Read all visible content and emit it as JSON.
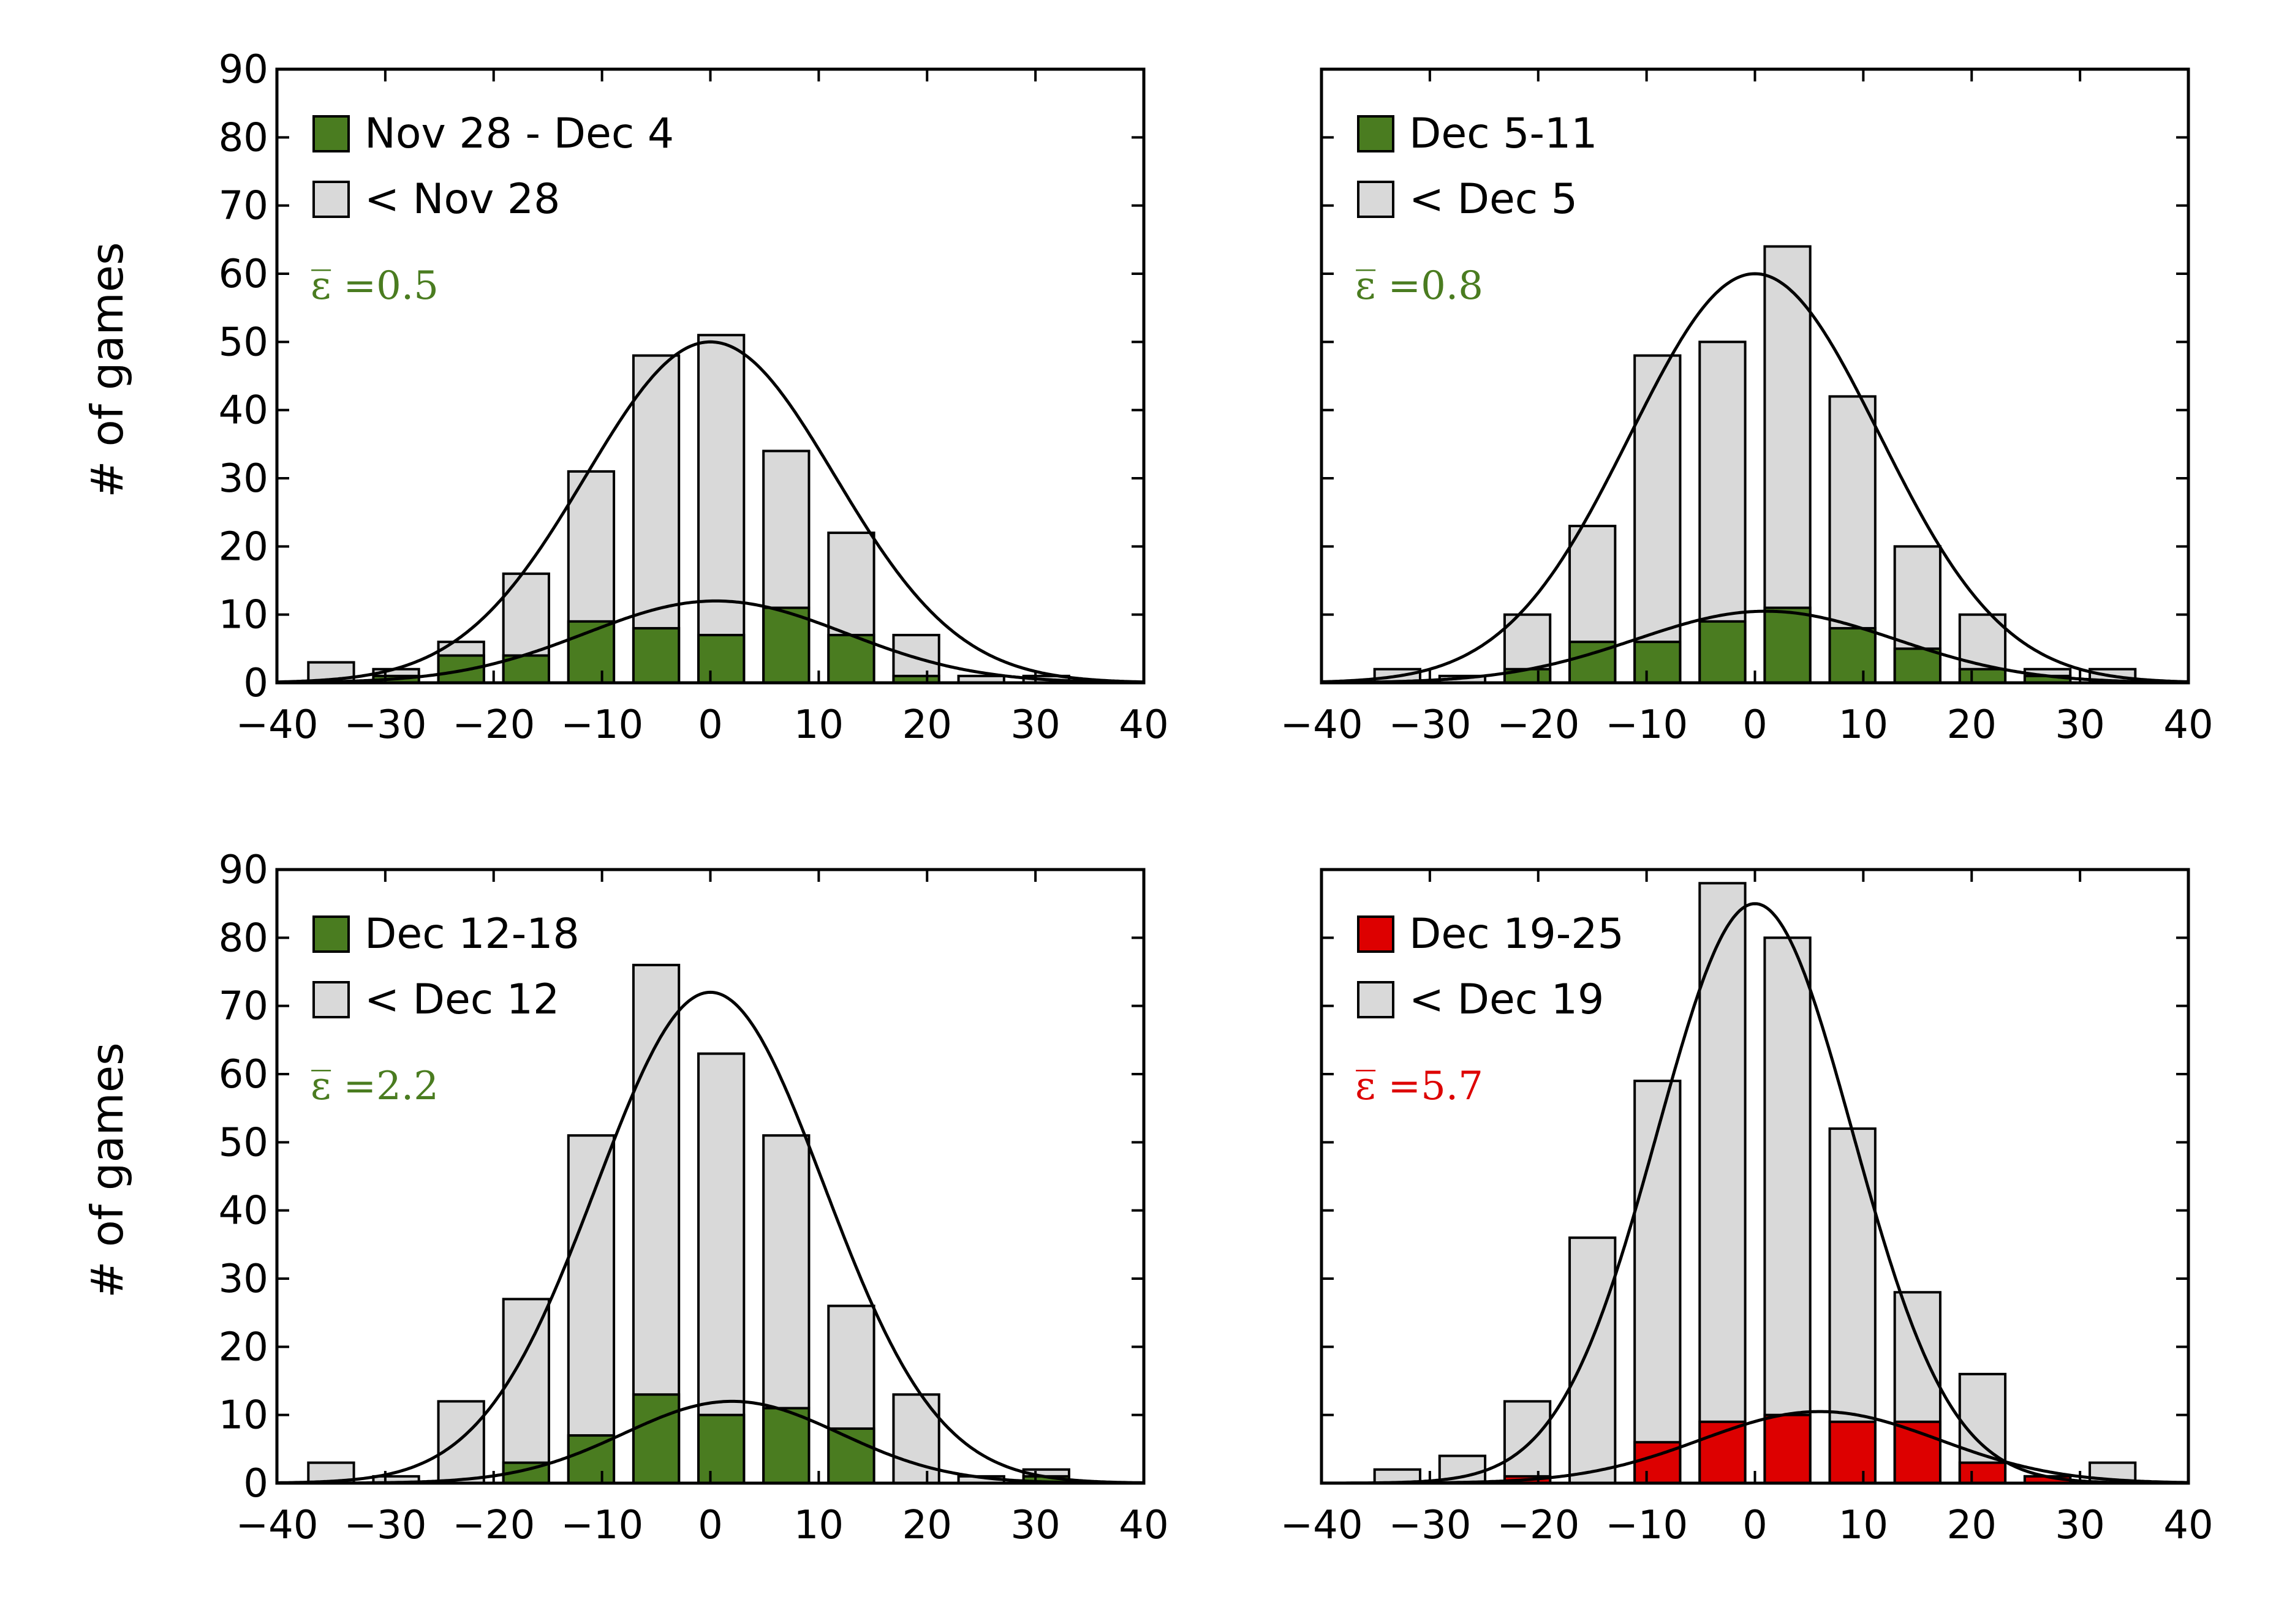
{
  "chart_data": [
    {
      "type": "bar",
      "ylabel": "# of games",
      "xlim": [
        -40,
        40
      ],
      "ylim": [
        0,
        90
      ],
      "xticks": [
        "−40",
        "−30",
        "−20",
        "−10",
        "0",
        "10",
        "20",
        "30",
        "40"
      ],
      "yticks": [
        "0",
        "10",
        "20",
        "30",
        "40",
        "50",
        "60",
        "70",
        "80",
        "90"
      ],
      "bin_centers": [
        -35,
        -29,
        -23,
        -17,
        -11,
        -5,
        1,
        7,
        13,
        19,
        25,
        31,
        37
      ],
      "series": [
        {
          "name": "< Nov 28",
          "color": "#d9d9d9",
          "values": [
            3,
            2,
            6,
            16,
            31,
            48,
            51,
            34,
            22,
            7,
            1,
            1,
            0
          ]
        },
        {
          "name": "Nov 28 - Dec 4",
          "color": "#4a7c20",
          "values": [
            0,
            1,
            4,
            4,
            9,
            8,
            7,
            11,
            7,
            1,
            0,
            0,
            0
          ]
        }
      ],
      "fit_curves": [
        {
          "peak": 50,
          "mean": 0,
          "sigma": 11.5
        },
        {
          "peak": 12,
          "mean": 0.5,
          "sigma": 12
        }
      ],
      "annotation": "ε̅ =0.5",
      "annotation_color": "#4a7c20",
      "legend": "top-left"
    },
    {
      "type": "bar",
      "ylabel": "",
      "xlim": [
        -40,
        40
      ],
      "ylim": [
        0,
        90
      ],
      "xticks": [
        "−40",
        "−30",
        "−20",
        "−10",
        "0",
        "10",
        "20",
        "30",
        "40"
      ],
      "yticks": [],
      "bin_centers": [
        -33,
        -27,
        -21,
        -15,
        -9,
        -3,
        3,
        9,
        15,
        21,
        27,
        33
      ],
      "series": [
        {
          "name": "< Dec 5",
          "color": "#d9d9d9",
          "values": [
            2,
            1,
            10,
            23,
            48,
            50,
            64,
            42,
            20,
            10,
            2,
            2
          ]
        },
        {
          "name": "Dec 5-11",
          "color": "#4a7c20",
          "values": [
            0,
            0,
            2,
            6,
            6,
            9,
            11,
            8,
            5,
            2,
            1,
            0
          ]
        }
      ],
      "fit_curves": [
        {
          "peak": 60,
          "mean": 0,
          "sigma": 11.5
        },
        {
          "peak": 10.5,
          "mean": 1,
          "sigma": 12
        }
      ],
      "annotation": "ε̅ =0.8",
      "annotation_color": "#4a7c20",
      "legend": "top-left"
    },
    {
      "type": "bar",
      "ylabel": "# of games",
      "xlim": [
        -40,
        40
      ],
      "ylim": [
        0,
        90
      ],
      "xticks": [
        "−40",
        "−30",
        "−20",
        "−10",
        "0",
        "10",
        "20",
        "30",
        "40"
      ],
      "yticks": [
        "0",
        "10",
        "20",
        "30",
        "40",
        "50",
        "60",
        "70",
        "80",
        "90"
      ],
      "bin_centers": [
        -35,
        -29,
        -23,
        -17,
        -11,
        -5,
        1,
        7,
        13,
        19,
        25,
        31
      ],
      "series": [
        {
          "name": "< Dec 12",
          "color": "#d9d9d9",
          "values": [
            3,
            1,
            12,
            27,
            51,
            76,
            63,
            51,
            26,
            13,
            1,
            2
          ]
        },
        {
          "name": "Dec 12-18",
          "color": "#4a7c20",
          "values": [
            0,
            0,
            0,
            3,
            7,
            13,
            10,
            11,
            8,
            0,
            0,
            1
          ]
        }
      ],
      "fit_curves": [
        {
          "peak": 72,
          "mean": 0,
          "sigma": 10.5
        },
        {
          "peak": 12,
          "mean": 2,
          "sigma": 10
        }
      ],
      "annotation": "ε̅ =2.2",
      "annotation_color": "#4a7c20",
      "legend": "top-left"
    },
    {
      "type": "bar",
      "ylabel": "",
      "xlim": [
        -40,
        40
      ],
      "ylim": [
        0,
        90
      ],
      "xticks": [
        "−40",
        "−30",
        "−20",
        "−10",
        "0",
        "10",
        "20",
        "30",
        "40"
      ],
      "yticks": [],
      "bin_centers": [
        -33,
        -27,
        -21,
        -15,
        -9,
        -3,
        3,
        9,
        15,
        21,
        27,
        33
      ],
      "series": [
        {
          "name": "< Dec 19",
          "color": "#d9d9d9",
          "values": [
            2,
            4,
            12,
            36,
            59,
            88,
            80,
            52,
            28,
            16,
            1,
            3
          ]
        },
        {
          "name": "Dec 19-25",
          "color": "#dd0000",
          "values": [
            0,
            0,
            1,
            0,
            6,
            9,
            10,
            9,
            9,
            3,
            1,
            0
          ]
        }
      ],
      "fit_curves": [
        {
          "peak": 85,
          "mean": 0,
          "sigma": 9
        },
        {
          "peak": 10.5,
          "mean": 6,
          "sigma": 11
        }
      ],
      "annotation": "ε̅ =5.7",
      "annotation_color": "#dd0000",
      "legend": "top-left"
    }
  ]
}
